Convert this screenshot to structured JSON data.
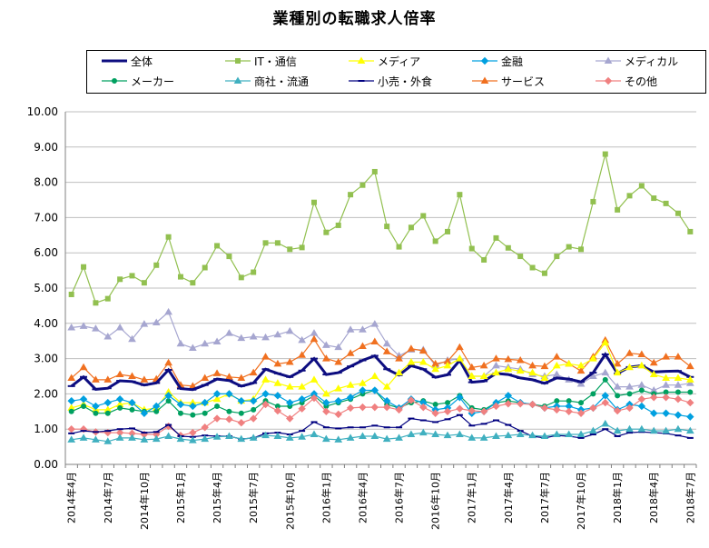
{
  "chart_data": {
    "type": "line",
    "title": "業種別の転職求人倍率",
    "xlabel": "",
    "ylabel": "",
    "ylim": [
      0,
      10
    ],
    "yticks": [
      "0.00",
      "1.00",
      "2.00",
      "3.00",
      "4.00",
      "5.00",
      "6.00",
      "7.00",
      "8.00",
      "9.00",
      "10.00"
    ],
    "grid": true,
    "legend_position": "top",
    "x_tick_labels": [
      {
        "index": 0,
        "label": "2014年4月"
      },
      {
        "index": 3,
        "label": "2014年7月"
      },
      {
        "index": 6,
        "label": "2014年10月"
      },
      {
        "index": 9,
        "label": "2015年1月"
      },
      {
        "index": 12,
        "label": "2015年4月"
      },
      {
        "index": 15,
        "label": "2015年7月"
      },
      {
        "index": 18,
        "label": "2015年10月"
      },
      {
        "index": 21,
        "label": "2016年1月"
      },
      {
        "index": 24,
        "label": "2016年4月"
      },
      {
        "index": 27,
        "label": "2016年7月"
      },
      {
        "index": 30,
        "label": "2016年10月"
      },
      {
        "index": 33,
        "label": "2017年1月"
      },
      {
        "index": 36,
        "label": "2017年4月"
      },
      {
        "index": 39,
        "label": "2017年7月"
      },
      {
        "index": 42,
        "label": "2017年10月"
      },
      {
        "index": 45,
        "label": "2018年1月"
      },
      {
        "index": 48,
        "label": "2018年4月"
      },
      {
        "index": 51,
        "label": "2018年7月"
      }
    ],
    "series": [
      {
        "name": "全体",
        "color": "#0d0d80",
        "marker": "dash",
        "bold": true,
        "values": [
          2.22,
          2.48,
          2.13,
          2.16,
          2.37,
          2.35,
          2.25,
          2.31,
          2.68,
          2.15,
          2.12,
          2.25,
          2.42,
          2.38,
          2.22,
          2.31,
          2.7,
          2.58,
          2.48,
          2.66,
          3.0,
          2.55,
          2.6,
          2.78,
          2.95,
          3.08,
          2.7,
          2.53,
          2.8,
          2.7,
          2.47,
          2.54,
          2.95,
          2.33,
          2.36,
          2.58,
          2.55,
          2.45,
          2.4,
          2.3,
          2.45,
          2.42,
          2.34,
          2.6,
          3.12,
          2.58,
          2.76,
          2.8,
          2.62,
          2.64,
          2.65,
          2.48
        ]
      },
      {
        "name": "IT・通信",
        "color": "#92c050",
        "marker": "square",
        "values": [
          4.82,
          5.6,
          4.58,
          4.7,
          5.25,
          5.35,
          5.15,
          5.65,
          6.45,
          5.32,
          5.15,
          5.58,
          6.2,
          5.9,
          5.3,
          5.45,
          6.28,
          6.28,
          6.1,
          6.15,
          7.43,
          6.58,
          6.78,
          7.65,
          7.92,
          8.3,
          6.75,
          6.17,
          6.72,
          7.05,
          6.33,
          6.6,
          7.65,
          6.12,
          5.8,
          6.42,
          6.14,
          5.9,
          5.58,
          5.42,
          5.9,
          6.17,
          6.1,
          7.45,
          8.8,
          7.22,
          7.62,
          7.9,
          7.55,
          7.4,
          7.12,
          6.6
        ]
      },
      {
        "name": "メディア",
        "color": "#ffff00",
        "marker": "triangle",
        "values": [
          1.6,
          1.7,
          1.55,
          1.55,
          1.7,
          1.75,
          1.55,
          1.6,
          2.05,
          1.75,
          1.75,
          1.75,
          1.85,
          2.0,
          1.8,
          1.85,
          2.4,
          2.3,
          2.2,
          2.2,
          2.4,
          2.0,
          2.15,
          2.25,
          2.3,
          2.5,
          2.2,
          2.6,
          2.9,
          2.9,
          2.7,
          2.8,
          3.0,
          2.5,
          2.5,
          2.6,
          2.7,
          2.65,
          2.6,
          2.45,
          2.8,
          2.85,
          2.8,
          3.0,
          3.45,
          2.6,
          2.75,
          2.8,
          2.55,
          2.45,
          2.45,
          2.4
        ]
      },
      {
        "name": "金融",
        "color": "#00a0e0",
        "marker": "diamond",
        "values": [
          1.8,
          1.85,
          1.65,
          1.75,
          1.85,
          1.75,
          1.45,
          1.65,
          1.95,
          1.7,
          1.65,
          1.75,
          2.0,
          2.0,
          1.8,
          1.8,
          2.0,
          1.95,
          1.75,
          1.85,
          2.0,
          1.75,
          1.8,
          1.9,
          2.1,
          2.1,
          1.8,
          1.6,
          1.85,
          1.75,
          1.55,
          1.6,
          1.9,
          1.45,
          1.5,
          1.75,
          1.95,
          1.75,
          1.7,
          1.6,
          1.65,
          1.65,
          1.55,
          1.6,
          1.95,
          1.55,
          1.7,
          1.65,
          1.45,
          1.45,
          1.4,
          1.35
        ]
      },
      {
        "name": "メディカル",
        "color": "#a6a6d0",
        "marker": "triangle",
        "values": [
          3.88,
          3.92,
          3.85,
          3.62,
          3.88,
          3.55,
          3.98,
          4.02,
          4.32,
          3.42,
          3.3,
          3.42,
          3.48,
          3.72,
          3.58,
          3.62,
          3.6,
          3.68,
          3.78,
          3.52,
          3.72,
          3.38,
          3.32,
          3.82,
          3.82,
          3.98,
          3.42,
          3.08,
          3.25,
          3.25,
          2.8,
          2.95,
          3.0,
          2.5,
          2.5,
          2.8,
          2.75,
          2.7,
          2.55,
          2.5,
          2.55,
          2.4,
          2.28,
          2.5,
          2.6,
          2.2,
          2.2,
          2.25,
          2.1,
          2.25,
          2.25,
          2.3
        ]
      },
      {
        "name": "メーカー",
        "color": "#00a060",
        "marker": "circle",
        "values": [
          1.5,
          1.65,
          1.45,
          1.45,
          1.6,
          1.55,
          1.5,
          1.5,
          1.8,
          1.45,
          1.4,
          1.45,
          1.65,
          1.5,
          1.45,
          1.55,
          1.8,
          1.65,
          1.65,
          1.75,
          1.95,
          1.65,
          1.75,
          1.85,
          2.0,
          2.1,
          1.7,
          1.6,
          1.75,
          1.8,
          1.7,
          1.75,
          1.95,
          1.6,
          1.55,
          1.75,
          1.8,
          1.75,
          1.7,
          1.65,
          1.8,
          1.8,
          1.75,
          2.0,
          2.4,
          1.95,
          2.0,
          2.1,
          2.0,
          2.05,
          2.05,
          2.05
        ]
      },
      {
        "name": "商社・流通",
        "color": "#40b0c0",
        "marker": "triangle",
        "values": [
          0.7,
          0.75,
          0.7,
          0.65,
          0.75,
          0.75,
          0.7,
          0.72,
          0.8,
          0.72,
          0.68,
          0.72,
          0.78,
          0.8,
          0.72,
          0.75,
          0.82,
          0.8,
          0.75,
          0.78,
          0.85,
          0.72,
          0.7,
          0.75,
          0.8,
          0.8,
          0.72,
          0.75,
          0.85,
          0.9,
          0.85,
          0.82,
          0.85,
          0.75,
          0.75,
          0.8,
          0.82,
          0.85,
          0.82,
          0.8,
          0.85,
          0.85,
          0.85,
          0.95,
          1.15,
          0.95,
          1.0,
          1.0,
          0.95,
          0.95,
          1.0,
          0.95
        ]
      },
      {
        "name": "小売・外食",
        "color": "#000080",
        "marker": "dash",
        "values": [
          0.88,
          0.95,
          0.92,
          0.95,
          1.0,
          1.02,
          0.9,
          0.92,
          1.12,
          0.8,
          0.78,
          0.82,
          0.8,
          0.8,
          0.72,
          0.75,
          0.88,
          0.9,
          0.85,
          0.95,
          1.2,
          1.05,
          1.02,
          1.05,
          1.05,
          1.1,
          1.05,
          1.05,
          1.3,
          1.25,
          1.2,
          1.28,
          1.4,
          1.1,
          1.15,
          1.25,
          1.12,
          0.95,
          0.8,
          0.75,
          0.82,
          0.8,
          0.75,
          0.85,
          1.0,
          0.8,
          0.9,
          0.92,
          0.9,
          0.88,
          0.82,
          0.75
        ]
      },
      {
        "name": "サービス",
        "color": "#f07020",
        "marker": "triangle",
        "values": [
          2.45,
          2.75,
          2.4,
          2.4,
          2.55,
          2.5,
          2.4,
          2.42,
          2.88,
          2.25,
          2.22,
          2.45,
          2.58,
          2.48,
          2.45,
          2.6,
          3.05,
          2.85,
          2.9,
          3.1,
          3.55,
          3.0,
          2.9,
          3.15,
          3.35,
          3.48,
          3.2,
          3.0,
          3.28,
          3.22,
          2.85,
          2.92,
          3.32,
          2.75,
          2.8,
          3.0,
          2.98,
          2.95,
          2.8,
          2.78,
          3.05,
          2.85,
          2.65,
          3.05,
          3.52,
          2.85,
          3.15,
          3.12,
          2.88,
          3.05,
          3.05,
          2.78
        ]
      },
      {
        "name": "その他",
        "color": "#f08080",
        "marker": "diamond",
        "values": [
          1.0,
          1.0,
          0.92,
          0.9,
          0.9,
          0.88,
          0.85,
          0.85,
          1.08,
          0.82,
          0.9,
          1.05,
          1.3,
          1.28,
          1.18,
          1.3,
          1.7,
          1.52,
          1.3,
          1.58,
          1.88,
          1.5,
          1.42,
          1.6,
          1.62,
          1.62,
          1.62,
          1.55,
          1.82,
          1.62,
          1.45,
          1.5,
          1.58,
          1.52,
          1.5,
          1.65,
          1.72,
          1.72,
          1.7,
          1.6,
          1.55,
          1.5,
          1.45,
          1.6,
          1.75,
          1.52,
          1.6,
          1.85,
          1.9,
          1.9,
          1.85,
          1.75
        ]
      }
    ]
  }
}
